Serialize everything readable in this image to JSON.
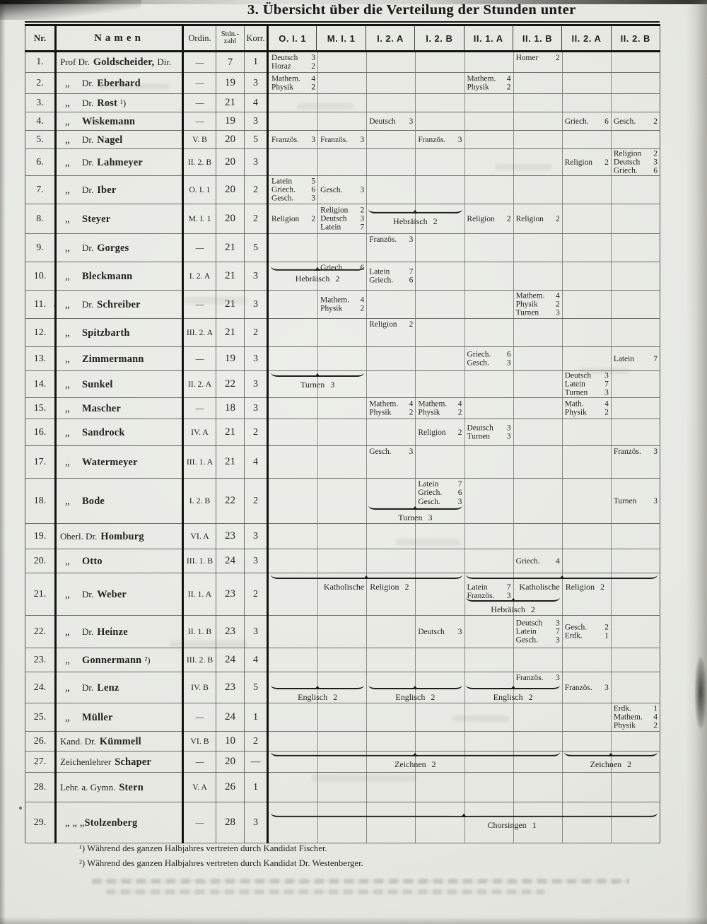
{
  "page": {
    "title": "3. Übersicht über die Verteilung der Stunden unter"
  },
  "table": {
    "headers": {
      "nr": "Nr.",
      "namen": "Namen",
      "ordin": "Ordin.",
      "stdnzahl_1": "Stdn.-",
      "stdnzahl_2": "zahl",
      "korr": "Korr."
    },
    "class_columns": [
      "O. I. 1",
      "M. I. 1",
      "I. 2. A",
      "I. 2. B",
      "II. 1. A",
      "II. 1. B",
      "II. 2. A",
      "II. 2. B"
    ],
    "rows": [
      {
        "nr": "1.",
        "ditto": "",
        "pre": "Prof Dr.",
        "bold": "Goldscheider,",
        "post": "Dir.",
        "ordin": "—",
        "std": "7",
        "korr": "1",
        "cells": [
          {
            "col": 1,
            "v": "top",
            "items": [
              [
                "Deutsch",
                "3"
              ],
              [
                "Horaz",
                "2"
              ]
            ]
          },
          {
            "col": 6,
            "v": "top",
            "items": [
              [
                "Homer",
                "2"
              ]
            ]
          }
        ],
        "braces": []
      },
      {
        "nr": "2.",
        "ditto": "„",
        "pre": "Dr.",
        "bold": "Eberhard",
        "post": "",
        "ordin": "—",
        "std": "19",
        "korr": "3",
        "cells": [
          {
            "col": 1,
            "v": "mid",
            "items": [
              [
                "Mathem.",
                "4"
              ],
              [
                "Physik",
                "2"
              ]
            ]
          },
          {
            "col": 5,
            "v": "mid",
            "items": [
              [
                "Mathem.",
                "4"
              ],
              [
                "Physik",
                "2"
              ]
            ]
          }
        ],
        "braces": []
      },
      {
        "nr": "3.",
        "ditto": "„",
        "pre": "Dr.",
        "bold": "Rost",
        "post": "¹)",
        "ordin": "—",
        "std": "21",
        "korr": "4",
        "cells": [],
        "braces": []
      },
      {
        "nr": "4.",
        "ditto": "„",
        "pre": "",
        "bold": "Wiskemann",
        "post": "",
        "ordin": "—",
        "std": "19",
        "korr": "3",
        "cells": [
          {
            "col": 3,
            "v": "mid",
            "items": [
              [
                "Deutsch",
                "3"
              ]
            ]
          },
          {
            "col": 7,
            "v": "mid",
            "items": [
              [
                "Griech.",
                "6"
              ]
            ]
          },
          {
            "col": 8,
            "v": "mid",
            "items": [
              [
                "Gesch.",
                "2"
              ]
            ]
          }
        ],
        "braces": []
      },
      {
        "nr": "5.",
        "ditto": "„",
        "pre": "Dr.",
        "bold": "Nagel",
        "post": "",
        "ordin": "V. B",
        "std": "20",
        "korr": "5",
        "cells": [
          {
            "col": 1,
            "v": "mid",
            "items": [
              [
                "Französ.",
                "3"
              ]
            ]
          },
          {
            "col": 2,
            "v": "mid",
            "items": [
              [
                "Französ.",
                "3"
              ]
            ]
          },
          {
            "col": 4,
            "v": "mid",
            "items": [
              [
                "Französ.",
                "3"
              ]
            ]
          }
        ],
        "braces": []
      },
      {
        "nr": "6.",
        "ditto": "„",
        "pre": "Dr.",
        "bold": "Lahmeyer",
        "post": "",
        "ordin": "II. 2. B",
        "std": "20",
        "korr": "3",
        "cells": [
          {
            "col": 7,
            "v": "mid",
            "items": [
              [
                "Religion",
                "2"
              ]
            ]
          },
          {
            "col": 8,
            "v": "mid",
            "items": [
              [
                "Religion",
                "2"
              ],
              [
                "Deutsch",
                "3"
              ],
              [
                "Griech.",
                "6"
              ]
            ]
          }
        ],
        "braces": []
      },
      {
        "nr": "7.",
        "ditto": "„",
        "pre": "Dr.",
        "bold": "Iber",
        "post": "",
        "ordin": "O. I. 1",
        "std": "20",
        "korr": "2",
        "cells": [
          {
            "col": 1,
            "v": "mid",
            "items": [
              [
                "Latein",
                "5"
              ],
              [
                "Griech.",
                "6"
              ],
              [
                "Gesch.",
                "3"
              ]
            ]
          },
          {
            "col": 2,
            "v": "mid",
            "items": [
              [
                "Gesch.",
                "3"
              ]
            ]
          }
        ],
        "braces": []
      },
      {
        "nr": "8.",
        "ditto": "„",
        "pre": "",
        "bold": "Steyer",
        "post": "",
        "ordin": "M. I. 1",
        "std": "20",
        "korr": "2",
        "cells": [
          {
            "col": 1,
            "v": "mid",
            "items": [
              [
                "Religion",
                "2"
              ]
            ]
          },
          {
            "col": 2,
            "v": "mid",
            "items": [
              [
                "Religion",
                "2"
              ],
              [
                "Deutsch",
                "3"
              ],
              [
                "Latein",
                "7"
              ]
            ]
          },
          {
            "col": 5,
            "v": "mid",
            "items": [
              [
                "Religion",
                "2"
              ]
            ]
          },
          {
            "col": 6,
            "v": "mid",
            "items": [
              [
                "Religion",
                "2"
              ]
            ]
          }
        ],
        "braces": [
          {
            "from": 3,
            "to": 4,
            "label": "Hebräisch 2",
            "v": "mid"
          }
        ]
      },
      {
        "nr": "9.",
        "ditto": "„",
        "pre": "Dr.",
        "bold": "Gorges",
        "post": "",
        "ordin": "—",
        "std": "21",
        "korr": "5",
        "cells": [
          {
            "col": 3,
            "v": "top",
            "items": [
              [
                "Französ.",
                "3"
              ]
            ]
          }
        ],
        "braces": []
      },
      {
        "nr": "10.",
        "ditto": "„",
        "pre": "",
        "bold": "Bleckmann",
        "post": "",
        "ordin": "I. 2. A",
        "std": "21",
        "korr": "3",
        "cells": [
          {
            "col": 2,
            "v": "top",
            "items": [
              [
                "Griech.",
                "6"
              ]
            ]
          },
          {
            "col": 3,
            "v": "mid",
            "items": [
              [
                "Latein",
                "7"
              ],
              [
                "Griech.",
                "6"
              ]
            ]
          }
        ],
        "braces": [
          {
            "from": 1,
            "to": 2,
            "label": "Hebräisch 2",
            "v": "mid"
          }
        ]
      },
      {
        "nr": "11.",
        "ditto": "„",
        "pre": "Dr.",
        "bold": "Schreiber",
        "post": "",
        "ordin": "—",
        "std": "21",
        "korr": "3",
        "cells": [
          {
            "col": 2,
            "v": "mid",
            "items": [
              [
                "Mathem.",
                "4"
              ],
              [
                "Physik",
                "2"
              ]
            ]
          },
          {
            "col": 6,
            "v": "mid",
            "items": [
              [
                "Mathem.",
                "4"
              ],
              [
                "Physik",
                "2"
              ],
              [
                "Turnen",
                "3"
              ]
            ]
          }
        ],
        "braces": []
      },
      {
        "nr": "12.",
        "ditto": "„",
        "pre": "",
        "bold": "Spitzbarth",
        "post": "",
        "ordin": "III. 2. A",
        "std": "21",
        "korr": "2",
        "cells": [
          {
            "col": 3,
            "v": "top",
            "items": [
              [
                "Religion",
                "2"
              ]
            ]
          }
        ],
        "braces": []
      },
      {
        "nr": "13.",
        "ditto": "„",
        "pre": "",
        "bold": "Zimmermann",
        "post": "",
        "ordin": "—",
        "std": "19",
        "korr": "3",
        "cells": [
          {
            "col": 5,
            "v": "mid",
            "items": [
              [
                "Griech.",
                "6"
              ],
              [
                "Gesch.",
                "3"
              ]
            ]
          },
          {
            "col": 8,
            "v": "mid",
            "items": [
              [
                "Latein",
                "7"
              ]
            ]
          }
        ],
        "braces": []
      },
      {
        "nr": "14.",
        "ditto": "„",
        "pre": "",
        "bold": "Sunkel",
        "post": "",
        "ordin": "II. 2. A",
        "std": "22",
        "korr": "3",
        "cells": [
          {
            "col": 7,
            "v": "mid",
            "items": [
              [
                "Deutsch",
                "3"
              ],
              [
                "Latein",
                "7"
              ],
              [
                "Turnen",
                "3"
              ]
            ]
          }
        ],
        "braces": [
          {
            "from": 1,
            "to": 2,
            "label": "Turnen 3",
            "v": "top"
          }
        ]
      },
      {
        "nr": "15.",
        "ditto": "„",
        "pre": "",
        "bold": "Mascher",
        "post": "",
        "ordin": "—",
        "std": "18",
        "korr": "3",
        "cells": [
          {
            "col": 3,
            "v": "mid",
            "items": [
              [
                "Mathem.",
                "4"
              ],
              [
                "Physik",
                "2"
              ]
            ]
          },
          {
            "col": 4,
            "v": "mid",
            "items": [
              [
                "Mathem.",
                "4"
              ],
              [
                "Physik",
                "2"
              ]
            ]
          },
          {
            "col": 7,
            "v": "mid",
            "items": [
              [
                "Math.",
                "4"
              ],
              [
                "Physik",
                "2"
              ]
            ]
          }
        ],
        "braces": []
      },
      {
        "nr": "16.",
        "ditto": "„",
        "pre": "",
        "bold": "Sandrock",
        "post": "",
        "ordin": "IV. A",
        "std": "21",
        "korr": "2",
        "cells": [
          {
            "col": 4,
            "v": "mid",
            "items": [
              [
                "Religion",
                "2"
              ]
            ]
          },
          {
            "col": 5,
            "v": "mid",
            "items": [
              [
                "Deutsch",
                "3"
              ],
              [
                "Turnen",
                "3"
              ]
            ]
          }
        ],
        "braces": []
      },
      {
        "nr": "17.",
        "ditto": "„",
        "pre": "",
        "bold": "Watermeyer",
        "post": "",
        "ordin": "III. 1. A",
        "std": "21",
        "korr": "4",
        "cells": [
          {
            "col": 3,
            "v": "top",
            "items": [
              [
                "Gesch.",
                "3"
              ]
            ]
          },
          {
            "col": 8,
            "v": "top",
            "items": [
              [
                "Französ.",
                "3"
              ]
            ]
          }
        ],
        "braces": []
      },
      {
        "nr": "18.",
        "ditto": "„",
        "pre": "",
        "bold": "Bode",
        "post": "",
        "ordin": "I. 2. B",
        "std": "22",
        "korr": "2",
        "cells": [
          {
            "col": 4,
            "v": "top",
            "items": [
              [
                "Latein",
                "7"
              ],
              [
                "Griech.",
                "6"
              ],
              [
                "Gesch.",
                "3"
              ]
            ]
          },
          {
            "col": 8,
            "v": "mid",
            "items": [
              [
                "Turnen",
                "3"
              ]
            ]
          }
        ],
        "braces": [
          {
            "from": 3,
            "to": 4,
            "label": "Turnen 3",
            "v": "bot"
          }
        ]
      },
      {
        "nr": "19.",
        "ditto": "",
        "pre": "Oberl. Dr.",
        "bold": "Homburg",
        "post": "",
        "ordin": "VI. A",
        "std": "23",
        "korr": "3",
        "cells": [],
        "braces": []
      },
      {
        "nr": "20.",
        "ditto": "„",
        "pre": "",
        "bold": "Otto",
        "post": "",
        "ordin": "III. 1. B",
        "std": "24",
        "korr": "3",
        "cells": [
          {
            "col": 6,
            "v": "mid",
            "items": [
              [
                "Griech.",
                "4"
              ]
            ]
          }
        ],
        "braces": []
      },
      {
        "nr": "21.",
        "ditto": "„",
        "pre": "Dr.",
        "bold": "Weber",
        "post": "",
        "ordin": "II. 1. A",
        "std": "23",
        "korr": "2",
        "cells": [
          {
            "col": 5,
            "v": 14,
            "items": [
              [
                "Latein",
                "7"
              ],
              [
                "Französ.",
                "3"
              ]
            ]
          }
        ],
        "braces": [
          {
            "from": 1,
            "to": 4,
            "label": "Katholische Religion 2",
            "v": "top"
          },
          {
            "from": 5,
            "to": 8,
            "label": "Katholische Religion 2",
            "v": "top"
          },
          {
            "from": 5,
            "to": 6,
            "label": "Hebräisch 2",
            "v": "bot"
          }
        ]
      },
      {
        "nr": "22.",
        "ditto": "„",
        "pre": "Dr.",
        "bold": "Heinze",
        "post": "",
        "ordin": "II. 1. B",
        "std": "23",
        "korr": "3",
        "cells": [
          {
            "col": 4,
            "v": "mid",
            "items": [
              [
                "Deutsch",
                "3"
              ]
            ]
          },
          {
            "col": 6,
            "v": "mid",
            "items": [
              [
                "Deutsch",
                "3"
              ],
              [
                "Latein",
                "7"
              ],
              [
                "Gesch.",
                "3"
              ]
            ]
          },
          {
            "col": 7,
            "v": "mid",
            "items": [
              [
                "Gesch.",
                "2"
              ],
              [
                "Erdk.",
                "1"
              ]
            ]
          }
        ],
        "braces": []
      },
      {
        "nr": "23.",
        "ditto": "„",
        "pre": "",
        "bold": "Gonnermann",
        "post": "²)",
        "ordin": "III. 2. B",
        "std": "24",
        "korr": "4",
        "cells": [],
        "braces": []
      },
      {
        "nr": "24.",
        "ditto": "„",
        "pre": "Dr.",
        "bold": "Lenz",
        "post": "",
        "ordin": "IV. B",
        "std": "23",
        "korr": "5",
        "cells": [
          {
            "col": 6,
            "v": "top",
            "items": [
              [
                "Französ.",
                "3"
              ]
            ]
          },
          {
            "col": 7,
            "v": "mid",
            "items": [
              [
                "Französ.",
                "3"
              ]
            ]
          }
        ],
        "braces": [
          {
            "from": 1,
            "to": 2,
            "label": "Englisch 2",
            "v": "bot"
          },
          {
            "from": 3,
            "to": 4,
            "label": "Englisch 2",
            "v": "bot"
          },
          {
            "from": 5,
            "to": 6,
            "label": "Englisch 2",
            "v": "bot"
          }
        ]
      },
      {
        "nr": "25.",
        "ditto": "„",
        "pre": "",
        "bold": "Müller",
        "post": "",
        "ordin": "—",
        "std": "24",
        "korr": "1",
        "cells": [
          {
            "col": 8,
            "v": "mid",
            "items": [
              [
                "Erdk.",
                "1"
              ],
              [
                "Mathem.",
                "4"
              ],
              [
                "Physik",
                "2"
              ]
            ]
          }
        ],
        "braces": []
      },
      {
        "nr": "26.",
        "ditto": "",
        "pre": "Kand. Dr.",
        "bold": "Kümmell",
        "post": "",
        "ordin": "VI. B",
        "std": "10",
        "korr": "2",
        "cells": [],
        "braces": []
      },
      {
        "nr": "27.",
        "ditto": "",
        "pre": "Zeichenlehrer",
        "bold": "Schaper",
        "post": "",
        "ordin": "—",
        "std": "20",
        "korr": "—",
        "cells": [],
        "braces": [
          {
            "from": 1,
            "to": 6,
            "label": "Zeichnen 2",
            "v": "mid"
          },
          {
            "from": 7,
            "to": 8,
            "label": "Zeichnen 2",
            "v": "mid"
          }
        ]
      },
      {
        "nr": "28.",
        "ditto": "",
        "pre": "Lehr. a. Gymn.",
        "bold": "Stern",
        "post": "",
        "ordin": "V. A",
        "std": "26",
        "korr": "1",
        "cells": [],
        "braces": []
      },
      {
        "nr": "29.",
        "ditto": "„ „ „",
        "pre": "",
        "bold": "Stolzenberg",
        "post": "",
        "ordin": "—",
        "std": "28",
        "korr": "3",
        "cells": [],
        "braces": [
          {
            "from": 1,
            "to": 8,
            "label": "Chorsingen 1",
            "v": "mid",
            "la": "right"
          }
        ]
      }
    ]
  },
  "footnotes": [
    "¹) Während des ganzen Halbjahres vertreten durch Kandidat Fischer.",
    "²) Während des ganzen Halbjahres vertreten durch Kandidat Dr. Westenberger."
  ]
}
